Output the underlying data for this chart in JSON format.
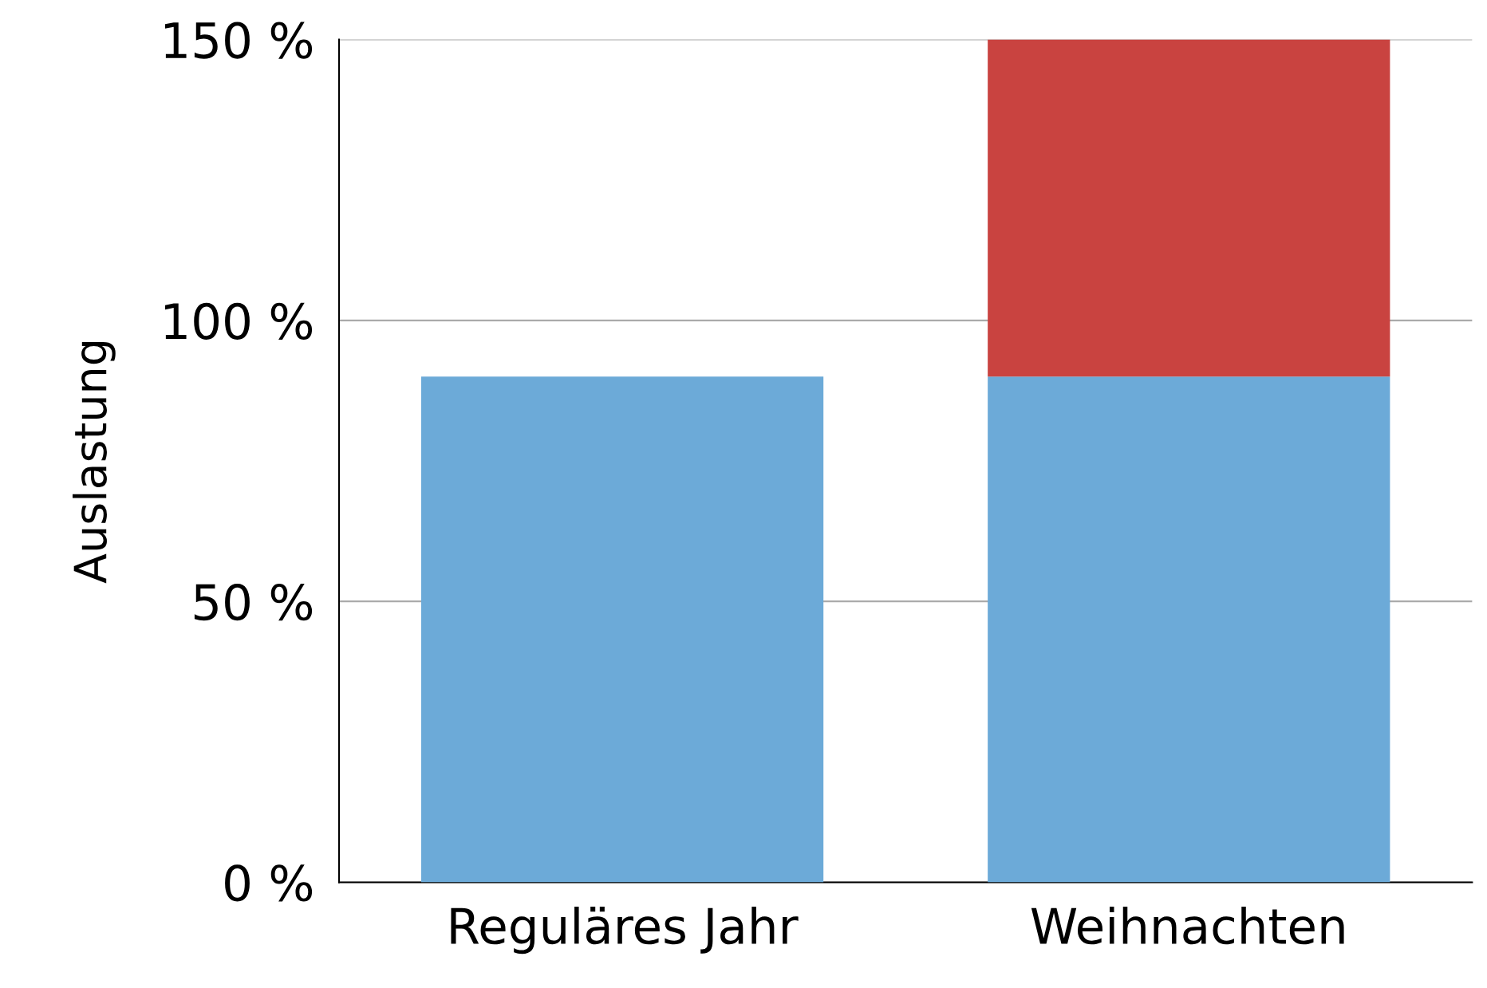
{
  "chart_data": {
    "type": "bar",
    "stacked": true,
    "ylabel": "Auslastung",
    "categories": [
      "Reguläres Jahr",
      "Weihnachten"
    ],
    "series": [
      {
        "color": "#6caad8",
        "values": [
          90,
          90
        ]
      },
      {
        "color": "#c94340",
        "values": [
          null,
          60
        ]
      }
    ],
    "ylim": [
      0,
      150
    ],
    "yticks": [
      {
        "value": 0,
        "label": "0 %"
      },
      {
        "value": 50,
        "label": "50 %"
      },
      {
        "value": 100,
        "label": "100 %"
      },
      {
        "value": 150,
        "label": "150 %"
      }
    ],
    "grid": "y"
  }
}
